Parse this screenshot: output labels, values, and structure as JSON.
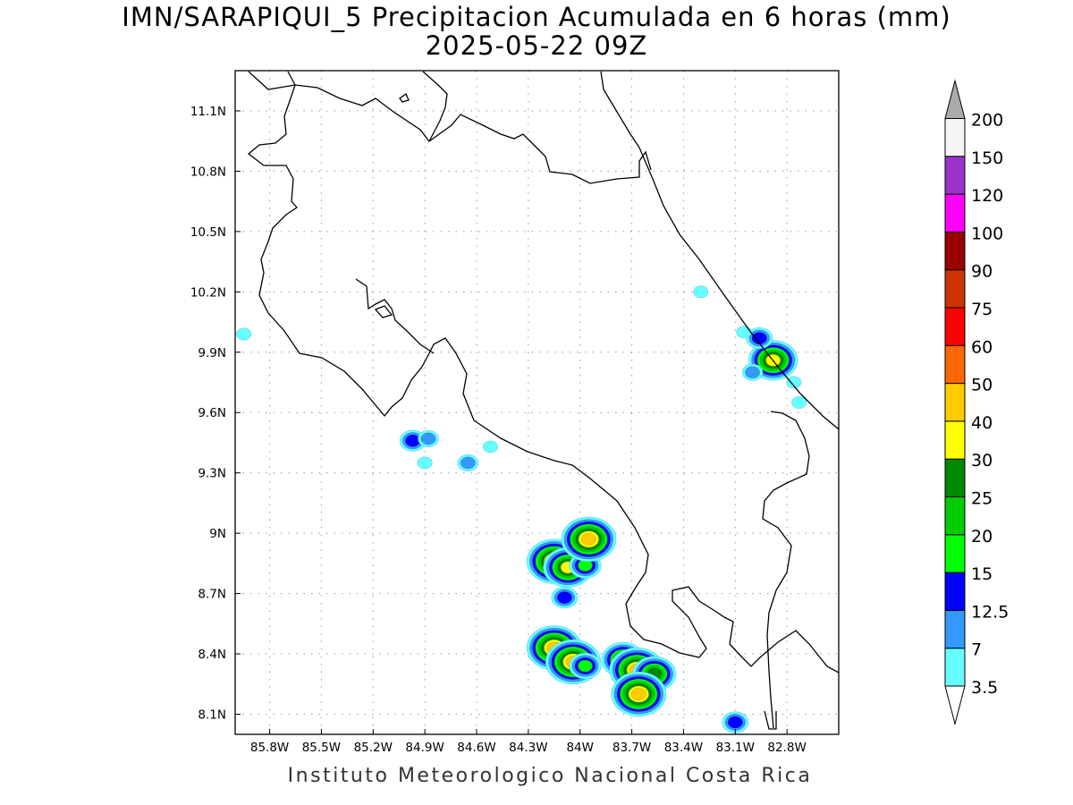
{
  "title": {
    "line1": "IMN/SARAPIQUI_5 Precipitacion Acumulada en 6 horas (mm)",
    "line2": "2025-05-22 09Z"
  },
  "footer": "Instituto Meteorologico Nacional Costa Rica",
  "map": {
    "lon_range": [
      -86.0,
      -82.5
    ],
    "lat_range": [
      8.0,
      11.3
    ],
    "x_ticks": [
      "85.8W",
      "85.5W",
      "85.2W",
      "84.9W",
      "84.6W",
      "84.3W",
      "84W",
      "83.7W",
      "83.4W",
      "83.1W",
      "82.8W"
    ],
    "x_tick_values": [
      -85.8,
      -85.5,
      -85.2,
      -84.9,
      -84.6,
      -84.3,
      -84.0,
      -83.7,
      -83.4,
      -83.1,
      -82.8
    ],
    "y_ticks": [
      "11.1N",
      "10.8N",
      "10.5N",
      "10.2N",
      "9.9N",
      "9.6N",
      "9.3N",
      "9N",
      "8.7N",
      "8.4N",
      "8.1N"
    ],
    "y_tick_values": [
      11.1,
      10.8,
      10.5,
      10.2,
      9.9,
      9.6,
      9.3,
      9.0,
      8.7,
      8.4,
      8.1
    ],
    "grid": true,
    "precip_cells": [
      {
        "lon": -85.95,
        "lat": 9.99,
        "max": 3.5
      },
      {
        "lon": -84.97,
        "lat": 9.46,
        "max": 12.5
      },
      {
        "lon": -84.88,
        "lat": 9.47,
        "max": 7
      },
      {
        "lon": -84.9,
        "lat": 9.35,
        "max": 3.5
      },
      {
        "lon": -84.65,
        "lat": 9.35,
        "max": 7
      },
      {
        "lon": -84.52,
        "lat": 9.43,
        "max": 3.5
      },
      {
        "lon": -84.15,
        "lat": 8.86,
        "max": 40
      },
      {
        "lon": -84.07,
        "lat": 8.83,
        "max": 30
      },
      {
        "lon": -83.97,
        "lat": 8.84,
        "max": 15
      },
      {
        "lon": -83.95,
        "lat": 8.97,
        "max": 40
      },
      {
        "lon": -84.09,
        "lat": 8.68,
        "max": 12.5
      },
      {
        "lon": -84.15,
        "lat": 8.43,
        "max": 40
      },
      {
        "lon": -84.04,
        "lat": 8.36,
        "max": 40
      },
      {
        "lon": -83.97,
        "lat": 8.34,
        "max": 15
      },
      {
        "lon": -83.75,
        "lat": 8.37,
        "max": 25
      },
      {
        "lon": -83.67,
        "lat": 8.32,
        "max": 40
      },
      {
        "lon": -83.57,
        "lat": 8.3,
        "max": 25
      },
      {
        "lon": -83.66,
        "lat": 8.2,
        "max": 40
      },
      {
        "lon": -82.88,
        "lat": 9.86,
        "max": 30
      },
      {
        "lon": -82.96,
        "lat": 9.97,
        "max": 12.5
      },
      {
        "lon": -83.05,
        "lat": 10.0,
        "max": 3.5
      },
      {
        "lon": -83.0,
        "lat": 9.8,
        "max": 7
      },
      {
        "lon": -82.76,
        "lat": 9.75,
        "max": 3.5
      },
      {
        "lon": -82.73,
        "lat": 9.65,
        "max": 3.5
      },
      {
        "lon": -83.3,
        "lat": 10.2,
        "max": 3.5
      },
      {
        "lon": -83.1,
        "lat": 8.06,
        "max": 12.5
      }
    ]
  },
  "colorbar": {
    "levels": [
      "3.5",
      "7",
      "12.5",
      "15",
      "20",
      "25",
      "30",
      "40",
      "50",
      "60",
      "75",
      "90",
      "100",
      "120",
      "150",
      "200"
    ],
    "colors": [
      "#66ffff",
      "#3399ff",
      "#0000ff",
      "#00ff00",
      "#00cc00",
      "#008800",
      "#ffff00",
      "#ffcc00",
      "#ff6600",
      "#ff0000",
      "#cc3300",
      "#990000",
      "#ff00ff",
      "#9933cc",
      "#f5f5f5",
      "#aaaaaa"
    ],
    "below_color": "#ffffff",
    "above_color": "#aaaaaa"
  }
}
